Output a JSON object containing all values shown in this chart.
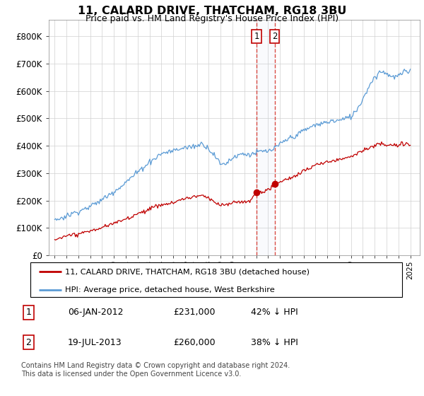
{
  "title": "11, CALARD DRIVE, THATCHAM, RG18 3BU",
  "subtitle": "Price paid vs. HM Land Registry's House Price Index (HPI)",
  "hpi_color": "#5b9bd5",
  "property_color": "#c00000",
  "transaction1_x": 2012.04,
  "transaction1_y": 231000,
  "transaction2_x": 2013.55,
  "transaction2_y": 260000,
  "legend_property": "11, CALARD DRIVE, THATCHAM, RG18 3BU (detached house)",
  "legend_hpi": "HPI: Average price, detached house, West Berkshire",
  "footnote": "Contains HM Land Registry data © Crown copyright and database right 2024.\nThis data is licensed under the Open Government Licence v3.0.",
  "table_rows": [
    [
      "1",
      "06-JAN-2012",
      "£231,000",
      "42% ↓ HPI"
    ],
    [
      "2",
      "19-JUL-2013",
      "£260,000",
      "38% ↓ HPI"
    ]
  ],
  "ylim": [
    0,
    860000
  ],
  "xlim_left": 1994.5,
  "xlim_right": 2025.8
}
